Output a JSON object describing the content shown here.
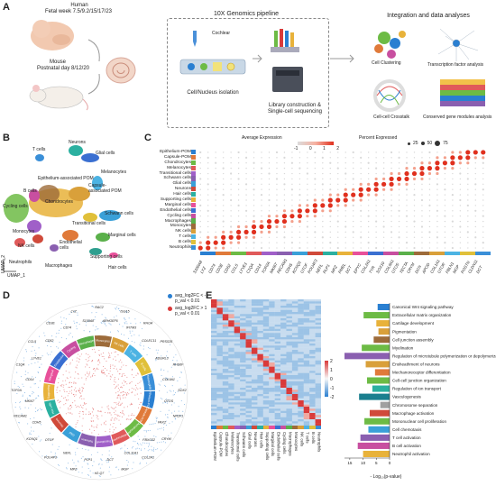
{
  "panel_a": {
    "letter": "A",
    "human": {
      "title": "Human",
      "subtitle": "Fetal week 7.5/9.2/15/17/23"
    },
    "mouse": {
      "title": "Mouse",
      "subtitle": "Postnatal day 8/12/20"
    },
    "pipeline_title": "10X Genomics pipeline",
    "cochlear": "Cochlear",
    "step1": "Cell/Nucleus isolation",
    "step2a": "Library construction &",
    "step2b": "Single-cell sequencing",
    "analysis_title": "Integration and data analyses",
    "analyses": [
      "Cell Clustering",
      "Transcription factor analysis",
      "Cell-cell Crosstalk",
      "Conserved gene modules analysis"
    ]
  },
  "panel_b": {
    "letter": "B",
    "axis_x": "UMAP_1",
    "axis_y": "UMAP_2",
    "clusters": [
      {
        "name": "T cells",
        "color": "#3a8fd8"
      },
      {
        "name": "Neurons",
        "color": "#2bb0a0"
      },
      {
        "name": "Glial cells",
        "color": "#3a6fd1"
      },
      {
        "name": "Melanocytes",
        "color": "#4cb3e3"
      },
      {
        "name": "Epithelium-associated POM",
        "color": "#9d6b3a"
      },
      {
        "name": "Capsule-associated POM",
        "color": "#d9a03a"
      },
      {
        "name": "B cells",
        "color": "#c84fa0"
      },
      {
        "name": "Chondrocytes",
        "color": "#e8b23a"
      },
      {
        "name": "Cycling cells",
        "color": "#6dbb45"
      },
      {
        "name": "Schwann cells",
        "color": "#3aa0d8"
      },
      {
        "name": "Transitional cells",
        "color": "#e0c03a"
      },
      {
        "name": "Monocytes",
        "color": "#a05fc8"
      },
      {
        "name": "NK cells",
        "color": "#d04a3a"
      },
      {
        "name": "Endothelial cells",
        "color": "#e07a3a"
      },
      {
        "name": "Marginal cells",
        "color": "#5ab04a"
      },
      {
        "name": "Neutrophils",
        "color": "#e05a5a"
      },
      {
        "name": "Macrophages",
        "color": "#8a5fb0"
      },
      {
        "name": "Supporting cells",
        "color": "#2f9f8f"
      },
      {
        "name": "Hair cells",
        "color": "#e8509a"
      }
    ]
  },
  "panel_c": {
    "letter": "C",
    "legend_avg": "Average Expression",
    "legend_avg_ticks": [
      "-1",
      "0",
      "1",
      "2"
    ],
    "legend_pct": "Percent Expressed",
    "legend_pct_ticks": [
      "25",
      "50",
      "75"
    ],
    "rows": [
      "Epithelium-POM",
      "Capsule-POM",
      "Chondrocytes",
      "Melanocytes",
      "Transitional cells",
      "Schwann cells",
      "Glial cells",
      "Neurons",
      "Hair cells",
      "Supporting cells",
      "Marginal cells",
      "Endothelial cells",
      "Cycling cells",
      "Macrophages",
      "Monocytes",
      "NK cells",
      "T cells",
      "B cells",
      "Neutrophils"
    ],
    "genes": [
      "S100A8",
      "LYZ",
      "CD74",
      "CD3E",
      "CD52",
      "CCL5",
      "LYVE1",
      "C1QA",
      "CD14",
      "TOP2A",
      "MKI67",
      "PECAM1",
      "CDH5",
      "KCNQ1",
      "OTOF",
      "POU4F3",
      "NEFL",
      "PLP1",
      "MPZ",
      "PMEL",
      "DCT",
      "EPYC",
      "COL2A1",
      "TYR",
      "SOX10",
      "COL9A1",
      "OTOS",
      "TECTA",
      "CRYM",
      "DCN",
      "APOD",
      "COL1A1",
      "OTOR",
      "FBLN1",
      "MGP",
      "POSTN",
      "CLDN11",
      "DCT"
    ],
    "bar_colors": [
      "#2a7fd1",
      "#e07a3a",
      "#6dbb45",
      "#e05a5a",
      "#a05fc8",
      "#8a5fb0",
      "#3aa0d8",
      "#d04a3a",
      "#2bb0a0",
      "#e8b23a",
      "#e8509a",
      "#3a6fd1",
      "#c84fa0",
      "#5ab04a",
      "#9d6b3a",
      "#d9a03a",
      "#4cb3e3",
      "#e0c03a",
      "#3a8fd8"
    ]
  },
  "panel_d": {
    "letter": "D",
    "legend": [
      {
        "label": "avg_log2FC < -1",
        "sub": "p_val < 0.01",
        "color": "#2a7fd1"
      },
      {
        "label": "avg_log2FC > 1",
        "sub": "p_val < 0.01",
        "color": "#d93a3a"
      }
    ],
    "gene_labels": [
      "RAC2",
      "ARHGEF6",
      "ISG15",
      "IFITM3",
      "RHOA",
      "COLEC11",
      "PRSS35",
      "ADGRL3",
      "RHS6F",
      "COL9A1",
      "SOX2",
      "OTOS",
      "NR2F1",
      "PAX2",
      "CRYM",
      "FBXO32",
      "COL2A1",
      "COL11A1",
      "MGP",
      "DCT",
      "H2-Q7",
      "PLP1",
      "MPZ",
      "NEFL",
      "POU4F3",
      "OTOF",
      "KCNQ1",
      "CDH5",
      "PECAM1",
      "MKI67",
      "TOP2A",
      "CD14",
      "C1QA",
      "LYVE1",
      "CCL5",
      "CD52",
      "CD3E",
      "CD74",
      "LYZ",
      "S100A8"
    ],
    "ring_labels": [
      "Epithelium-POM",
      "Capsule-POM",
      "Chondrocytes",
      "Melanocytes",
      "Transitional",
      "Schwann",
      "Glial",
      "Neurons",
      "Hair cells",
      "Supporting",
      "Marginal",
      "Endothelial",
      "Cycling",
      "Macrophages",
      "Monocytes",
      "NK cells",
      "T cells",
      "B cells",
      "Neutrophils"
    ]
  },
  "panel_e": {
    "letter": "E",
    "heat_scale": [
      "2",
      "1",
      "0",
      "-1",
      "-2"
    ],
    "columns": [
      "Epithelium-POM",
      "Capsule-POM",
      "Chondrocytes",
      "Melanocytes",
      "Transitional cells",
      "Schwann cells",
      "Glial cells",
      "Neurons",
      "Hair cells",
      "Supporting cells",
      "Marginal cells",
      "Endothelial cells",
      "Cycling cells",
      "Macrophages",
      "Monocytes",
      "NK cells",
      "T cells",
      "B cells",
      "Neutrophils"
    ],
    "xlabel": "- Log₁₀(p-value)",
    "x_ticks": [
      "15",
      "10",
      "5",
      "0"
    ],
    "go_terms": [
      {
        "term": "Canonical Wnt signaling pathway",
        "value": 4.5,
        "color": "#2a7fd1"
      },
      {
        "term": "Extracellular matrix organization",
        "value": 9.8,
        "color": "#6dbb45"
      },
      {
        "term": "Cartilage development",
        "value": 5.0,
        "color": "#e8b23a"
      },
      {
        "term": "Pigmentation",
        "value": 4.2,
        "color": "#d9a03a"
      },
      {
        "term": "Cell junction assembly",
        "value": 6.0,
        "color": "#9d6b3a"
      },
      {
        "term": "Myelination",
        "value": 10.5,
        "color": "#6dbb45"
      },
      {
        "term": "Regulation of microtubule polymerization or depolymerization",
        "value": 17.0,
        "color": "#8a5fb0"
      },
      {
        "term": "Ensheathment of neurons",
        "value": 9.0,
        "color": "#d9a03a"
      },
      {
        "term": "Mechanoreceptor differentiation",
        "value": 5.5,
        "color": "#e07a3a"
      },
      {
        "term": "Cell-cell junction organization",
        "value": 8.5,
        "color": "#6dbb45"
      },
      {
        "term": "Regulation of ion transport",
        "value": 6.5,
        "color": "#2bb0a0"
      },
      {
        "term": "Vasculogenesis",
        "value": 11.5,
        "color": "#1a7f8f"
      },
      {
        "term": "Chromosome separation",
        "value": 3.5,
        "color": "#a0a0a0"
      },
      {
        "term": "Macrophage activation",
        "value": 7.5,
        "color": "#d04a3a"
      },
      {
        "term": "Mononuclear cell proliferation",
        "value": 9.5,
        "color": "#6dbb45"
      },
      {
        "term": "Cell chemotaxis",
        "value": 8.0,
        "color": "#3aa0d8"
      },
      {
        "term": "T cell activation",
        "value": 11.0,
        "color": "#8a5fb0"
      },
      {
        "term": "B cell activation",
        "value": 12.0,
        "color": "#c84fa0"
      },
      {
        "term": "Neutrophil activation",
        "value": 10.0,
        "color": "#e8b23a"
      }
    ]
  }
}
